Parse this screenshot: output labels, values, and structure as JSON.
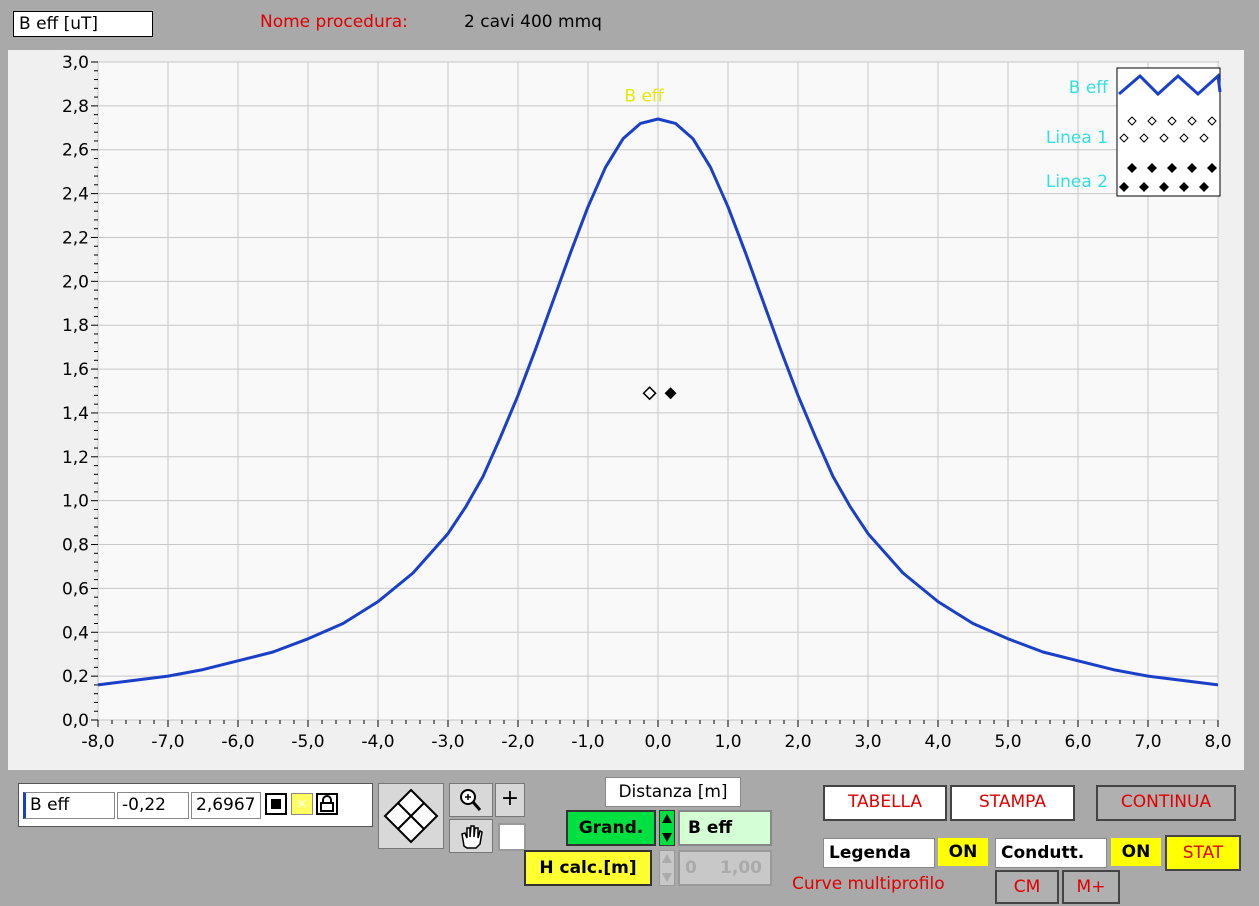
{
  "header": {
    "y_label": "B eff [uT]",
    "procedure_label": "Nome procedura:",
    "procedure_value": "2 cavi 400 mmq"
  },
  "chart_data": {
    "type": "line",
    "x_ticks": [
      "-8,0",
      "-7,0",
      "-6,0",
      "-5,0",
      "-4,0",
      "-3,0",
      "-2,0",
      "-1,0",
      "0,0",
      "1,0",
      "2,0",
      "3,0",
      "4,0",
      "5,0",
      "6,0",
      "7,0",
      "8,0"
    ],
    "y_ticks": [
      "0,0",
      "0,2",
      "0,4",
      "0,6",
      "0,8",
      "1,0",
      "1,2",
      "1,4",
      "1,6",
      "1,8",
      "2,0",
      "2,2",
      "2,4",
      "2,6",
      "2,8",
      "3,0"
    ],
    "xlim": [
      -8,
      8
    ],
    "ylim": [
      0,
      3
    ],
    "grid": true,
    "xlabel": "Distanza [m]",
    "ylabel": "B eff [uT]",
    "annotation": "B eff",
    "series": [
      {
        "name": "B eff",
        "color": "#1a3fc8",
        "x": [
          -8,
          -7.5,
          -7,
          -6.5,
          -6,
          -5.5,
          -5,
          -4.5,
          -4,
          -3.5,
          -3,
          -2.75,
          -2.5,
          -2.25,
          -2,
          -1.75,
          -1.5,
          -1.25,
          -1,
          -0.75,
          -0.5,
          -0.25,
          0,
          0.25,
          0.5,
          0.75,
          1,
          1.25,
          1.5,
          1.75,
          2,
          2.25,
          2.5,
          2.75,
          3,
          3.5,
          4,
          4.5,
          5,
          5.5,
          6,
          6.5,
          7,
          7.5,
          8
        ],
        "y": [
          0.16,
          0.18,
          0.2,
          0.23,
          0.27,
          0.31,
          0.37,
          0.44,
          0.54,
          0.67,
          0.85,
          0.97,
          1.11,
          1.29,
          1.48,
          1.69,
          1.91,
          2.13,
          2.34,
          2.52,
          2.65,
          2.72,
          2.74,
          2.72,
          2.65,
          2.52,
          2.34,
          2.13,
          1.91,
          1.69,
          1.48,
          1.29,
          1.11,
          0.97,
          0.85,
          0.67,
          0.54,
          0.44,
          0.37,
          0.31,
          0.27,
          0.23,
          0.2,
          0.18,
          0.16
        ]
      },
      {
        "name": "Linea 1",
        "color": "#000000",
        "marker": "hollow-diamond",
        "x": [
          -0.12
        ],
        "y": [
          1.49
        ]
      },
      {
        "name": "Linea 2",
        "color": "#000000",
        "marker": "filled-diamond",
        "x": [
          0.18
        ],
        "y": [
          1.49
        ]
      }
    ],
    "legend": {
      "position": "top-right",
      "entries": [
        "B eff",
        "Linea 1",
        "Linea 2"
      ]
    }
  },
  "cursor": {
    "name": "B eff",
    "x": "-0,22",
    "y": "2,6967"
  },
  "controls": {
    "x_axis_label": "Distanza [m]",
    "grand_button": "Grand.",
    "grand_value": "B eff",
    "hcalc_button": "H calc.[m]",
    "hcalc_index": "0",
    "hcalc_value": "1,00",
    "tabella": "TABELLA",
    "stampa": "STAMPA",
    "continua": "CONTINUA",
    "legenda_label": "Legenda",
    "legenda_state": "ON",
    "condutt_label": "Condutt.",
    "condutt_state": "ON",
    "stat": "STAT",
    "multiprofile_label": "Curve multiprofilo",
    "cm": "CM",
    "mplus": "M+"
  },
  "colors": {
    "curve": "#1a3fc8",
    "legend_text": "#33e0e0",
    "annotation": "#e8e800",
    "accent_red": "#e00000"
  }
}
